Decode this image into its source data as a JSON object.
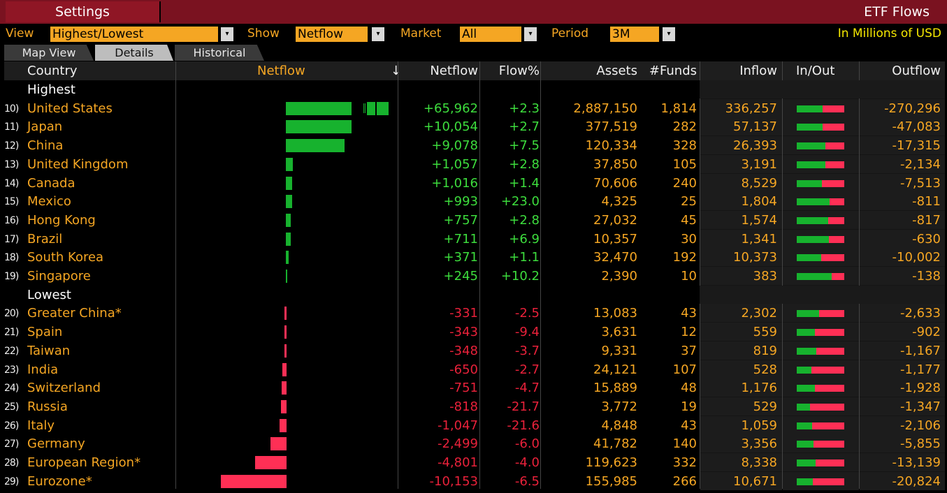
{
  "titlebar": {
    "settings": "Settings",
    "title": "ETF Flows"
  },
  "toolbar": {
    "view_label": "View",
    "view_value": "Highest/Lowest",
    "show_label": "Show",
    "show_value": "Netflow",
    "market_label": "Market",
    "market_value": "All",
    "period_label": "Period",
    "period_value": "3M",
    "units": "In Millions of USD",
    "arrow": "▾"
  },
  "tabs": [
    "Map View",
    "Details",
    "Historical"
  ],
  "headers": {
    "country": "Country",
    "netflow_bar": "Netflow",
    "sort": "↓",
    "netflow": "Netflow",
    "flow_pct": "Flow%",
    "assets": "Assets",
    "funds": "#Funds",
    "inflow": "Inflow",
    "inout": "In/Out",
    "outflow": "Outflow"
  },
  "sections": {
    "highest": "Highest",
    "lowest": "Lowest"
  },
  "colors": {
    "positive": "#3ddc3d",
    "negative": "#e8213a",
    "accent": "#f5a623",
    "title_bg": "#7a1220"
  },
  "rows": [
    {
      "idx": "10)",
      "country": "United States",
      "netflow": "+65,962",
      "netflow_value": 65962,
      "flow": "+2.3",
      "assets": "2,887,150",
      "funds": "1,814",
      "inflow": "336,257",
      "outflow": "-270,296",
      "in_share": 0.55,
      "broken_axis": true
    },
    {
      "idx": "11)",
      "country": "Japan",
      "netflow": "+10,054",
      "netflow_value": 10054,
      "flow": "+2.7",
      "assets": "377,519",
      "funds": "282",
      "inflow": "57,137",
      "outflow": "-47,083",
      "in_share": 0.55
    },
    {
      "idx": "12)",
      "country": "China",
      "netflow": "+9,078",
      "netflow_value": 9078,
      "flow": "+7.5",
      "assets": "120,334",
      "funds": "328",
      "inflow": "26,393",
      "outflow": "-17,315",
      "in_share": 0.6
    },
    {
      "idx": "13)",
      "country": "United Kingdom",
      "netflow": "+1,057",
      "netflow_value": 1057,
      "flow": "+2.8",
      "assets": "37,850",
      "funds": "105",
      "inflow": "3,191",
      "outflow": "-2,134",
      "in_share": 0.6
    },
    {
      "idx": "14)",
      "country": "Canada",
      "netflow": "+1,016",
      "netflow_value": 1016,
      "flow": "+1.4",
      "assets": "70,606",
      "funds": "240",
      "inflow": "8,529",
      "outflow": "-7,513",
      "in_share": 0.53
    },
    {
      "idx": "15)",
      "country": "Mexico",
      "netflow": "+993",
      "netflow_value": 993,
      "flow": "+23.0",
      "assets": "4,325",
      "funds": "25",
      "inflow": "1,804",
      "outflow": "-811",
      "in_share": 0.69
    },
    {
      "idx": "16)",
      "country": "Hong Kong",
      "netflow": "+757",
      "netflow_value": 757,
      "flow": "+2.8",
      "assets": "27,032",
      "funds": "45",
      "inflow": "1,574",
      "outflow": "-817",
      "in_share": 0.66
    },
    {
      "idx": "17)",
      "country": "Brazil",
      "netflow": "+711",
      "netflow_value": 711,
      "flow": "+6.9",
      "assets": "10,357",
      "funds": "30",
      "inflow": "1,341",
      "outflow": "-630",
      "in_share": 0.68
    },
    {
      "idx": "18)",
      "country": "South Korea",
      "netflow": "+371",
      "netflow_value": 371,
      "flow": "+1.1",
      "assets": "32,470",
      "funds": "192",
      "inflow": "10,373",
      "outflow": "-10,002",
      "in_share": 0.51
    },
    {
      "idx": "19)",
      "country": "Singapore",
      "netflow": "+245",
      "netflow_value": 245,
      "flow": "+10.2",
      "assets": "2,390",
      "funds": "10",
      "inflow": "383",
      "outflow": "-138",
      "in_share": 0.73
    },
    {
      "idx": "20)",
      "country": "Greater China*",
      "netflow": "-331",
      "netflow_value": -331,
      "flow": "-2.5",
      "assets": "13,083",
      "funds": "43",
      "inflow": "2,302",
      "outflow": "-2,633",
      "in_share": 0.47
    },
    {
      "idx": "21)",
      "country": "Spain",
      "netflow": "-343",
      "netflow_value": -343,
      "flow": "-9.4",
      "assets": "3,631",
      "funds": "12",
      "inflow": "559",
      "outflow": "-902",
      "in_share": 0.38
    },
    {
      "idx": "22)",
      "country": "Taiwan",
      "netflow": "-348",
      "netflow_value": -348,
      "flow": "-3.7",
      "assets": "9,331",
      "funds": "37",
      "inflow": "819",
      "outflow": "-1,167",
      "in_share": 0.41
    },
    {
      "idx": "23)",
      "country": "India",
      "netflow": "-650",
      "netflow_value": -650,
      "flow": "-2.7",
      "assets": "24,121",
      "funds": "107",
      "inflow": "528",
      "outflow": "-1,177",
      "in_share": 0.31
    },
    {
      "idx": "24)",
      "country": "Switzerland",
      "netflow": "-751",
      "netflow_value": -751,
      "flow": "-4.7",
      "assets": "15,889",
      "funds": "48",
      "inflow": "1,176",
      "outflow": "-1,928",
      "in_share": 0.38
    },
    {
      "idx": "25)",
      "country": "Russia",
      "netflow": "-818",
      "netflow_value": -818,
      "flow": "-21.7",
      "assets": "3,772",
      "funds": "19",
      "inflow": "529",
      "outflow": "-1,347",
      "in_share": 0.28
    },
    {
      "idx": "26)",
      "country": "Italy",
      "netflow": "-1,047",
      "netflow_value": -1047,
      "flow": "-21.6",
      "assets": "4,848",
      "funds": "43",
      "inflow": "1,059",
      "outflow": "-2,106",
      "in_share": 0.33
    },
    {
      "idx": "27)",
      "country": "Germany",
      "netflow": "-2,499",
      "netflow_value": -2499,
      "flow": "-6.0",
      "assets": "41,782",
      "funds": "140",
      "inflow": "3,356",
      "outflow": "-5,855",
      "in_share": 0.36
    },
    {
      "idx": "28)",
      "country": "European Region*",
      "netflow": "-4,801",
      "netflow_value": -4801,
      "flow": "-4.0",
      "assets": "119,623",
      "funds": "332",
      "inflow": "8,338",
      "outflow": "-13,139",
      "in_share": 0.39
    },
    {
      "idx": "29)",
      "country": "Eurozone*",
      "netflow": "-10,153",
      "netflow_value": -10153,
      "flow": "-6.5",
      "assets": "155,985",
      "funds": "266",
      "inflow": "10,671",
      "outflow": "-20,824",
      "in_share": 0.34
    }
  ]
}
